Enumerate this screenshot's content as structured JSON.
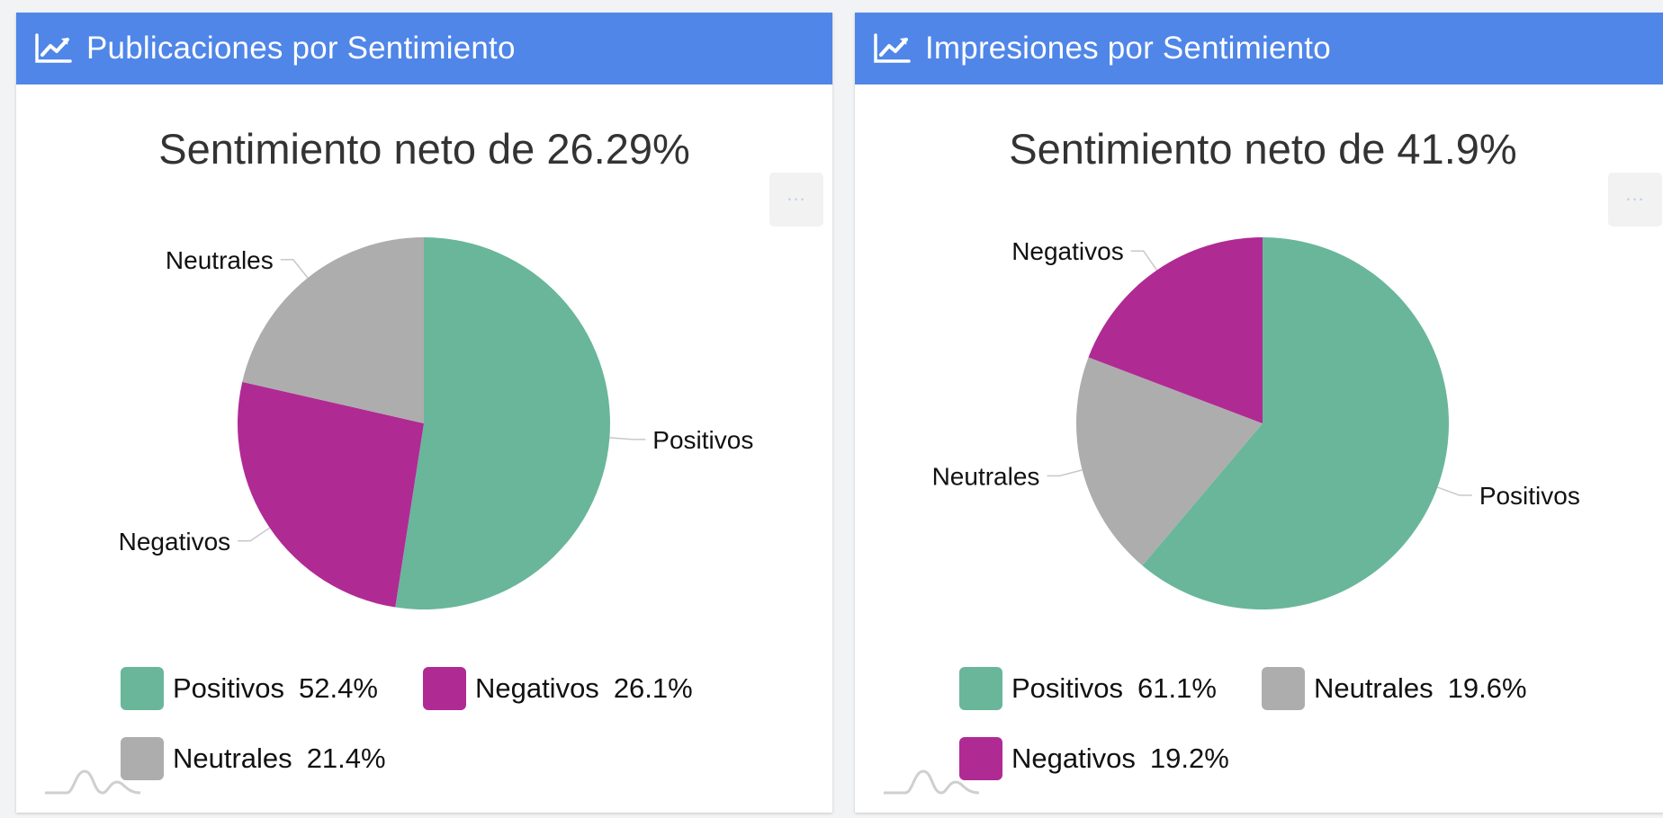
{
  "panels": [
    {
      "header_title": "Publicaciones por Sentimiento",
      "header_icon": "line-chart-icon",
      "menu_label": "...",
      "chart_data": {
        "type": "pie",
        "title": "Sentimiento neto de 26.29%",
        "slices": [
          {
            "label": "Positivos",
            "value": 52.4,
            "color": "#69b69b",
            "legend_value": "52.4%"
          },
          {
            "label": "Negativos",
            "value": 26.1,
            "color": "#b02a94",
            "legend_value": "26.1%"
          },
          {
            "label": "Neutrales",
            "value": 21.4,
            "color": "#adadad",
            "legend_value": "21.4%"
          }
        ],
        "legend_placement": "bottom"
      }
    },
    {
      "header_title": "Impresiones por Sentimiento",
      "header_icon": "line-chart-icon",
      "menu_label": "...",
      "chart_data": {
        "type": "pie",
        "title": "Sentimiento neto de 41.9%",
        "slices": [
          {
            "label": "Positivos",
            "value": 61.1,
            "color": "#69b69b",
            "legend_value": "61.1%"
          },
          {
            "label": "Neutrales",
            "value": 19.6,
            "color": "#adadad",
            "legend_value": "19.6%"
          },
          {
            "label": "Negativos",
            "value": 19.2,
            "color": "#b02a94",
            "legend_value": "19.2%"
          }
        ],
        "legend_placement": "bottom"
      }
    }
  ]
}
